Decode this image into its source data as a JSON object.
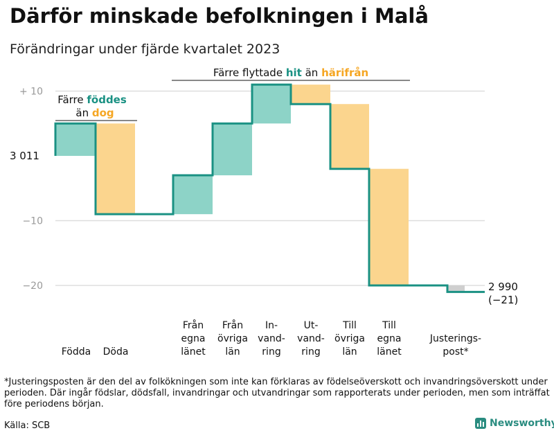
{
  "title": "Därför minskade befolkningen i Malå",
  "subtitle": "Förändringar under fjärde kvartalet 2023",
  "footnote": "*Justeringsposten är den del av folkökningen som inte kan förklaras av födelseöverskott och invandringsöverskott under perioden. Där ingår födslar, dödsfall, invandringar och utvandringar som rapporterats under perioden, men som inträffat före periodens början.",
  "source": "Källa: SCB",
  "brand": "Newsworthy",
  "colors": {
    "increase": "#8dd3c7",
    "decrease": "#fbd58e",
    "adjustment": "#cfcfcf",
    "line": "#1a9183",
    "hit": "#1a9183",
    "harifran": "#f5a623"
  },
  "chart_data": {
    "type": "waterfall",
    "start_label": "3 011",
    "start_value": 3011,
    "end_label": "2 990",
    "end_change_label": "(−21)",
    "end_value": 2990,
    "y_ticks": [
      {
        "value": 10,
        "label": "+  10"
      },
      {
        "value": 0,
        "label": ""
      },
      {
        "value": -10,
        "label": "−10"
      },
      {
        "value": -20,
        "label": "−20"
      }
    ],
    "ylim": [
      -24,
      12
    ],
    "steps": [
      {
        "label": "Födda",
        "value": 5,
        "kind": "increase"
      },
      {
        "label": "Döda",
        "value": -14,
        "kind": "decrease"
      },
      {
        "label": "Från egna länet",
        "value": 6,
        "kind": "increase"
      },
      {
        "label": "Från övriga län",
        "value": 8,
        "kind": "increase"
      },
      {
        "label": "In-vandring",
        "value": 6,
        "kind": "increase"
      },
      {
        "label": "Ut-vandring",
        "value": -3,
        "kind": "decrease"
      },
      {
        "label": "Till övriga län",
        "value": -10,
        "kind": "decrease"
      },
      {
        "label": "Till egna länet",
        "value": -18,
        "kind": "decrease"
      },
      {
        "label": "Justerings-post*",
        "value": -1,
        "kind": "adjustment"
      }
    ],
    "category_labels": [
      [
        "Födda"
      ],
      [
        "Döda"
      ],
      [
        "Från",
        "egna",
        "länet"
      ],
      [
        "Från",
        "övriga",
        "län"
      ],
      [
        "In-",
        "vand-",
        "ring"
      ],
      [
        "Ut-",
        "vand-",
        "ring"
      ],
      [
        "Till",
        "övriga",
        "län"
      ],
      [
        "Till",
        "egna",
        "länet"
      ],
      [
        "Justerings-",
        "post*"
      ]
    ],
    "annotations": {
      "natural": {
        "prefix": "Färre",
        "word_a": "föddes",
        "line2_prefix": "än",
        "word_b": "dog"
      },
      "migration": {
        "prefix": "Färre flyttade",
        "word_a": "hit",
        "mid": "än",
        "word_b": "härifrån"
      }
    }
  }
}
